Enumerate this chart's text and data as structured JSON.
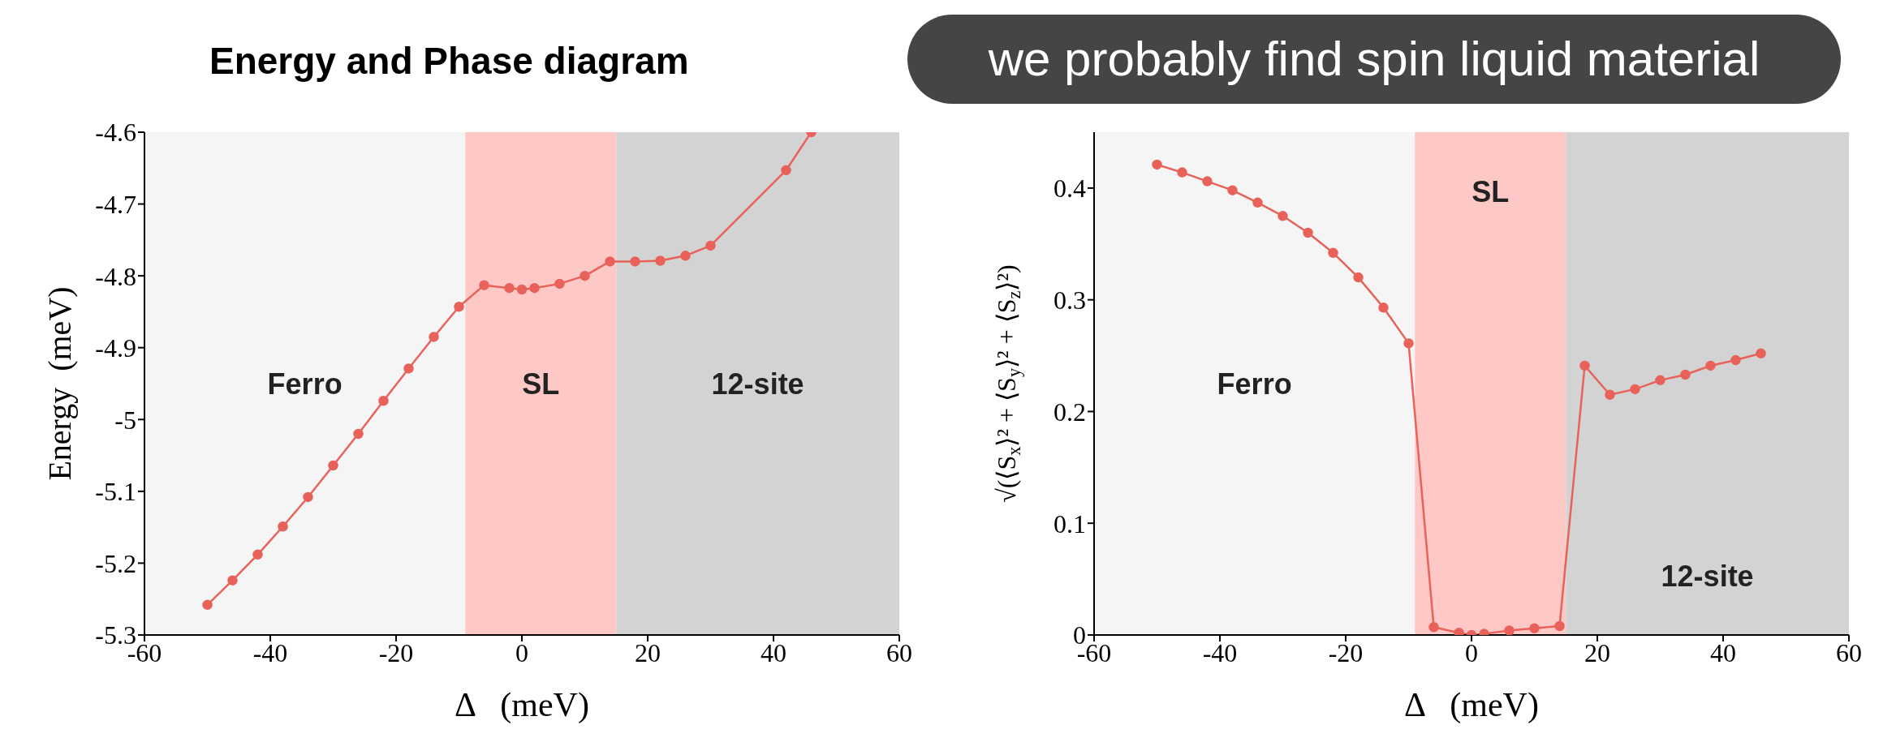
{
  "chart_data": [
    {
      "type": "line",
      "title": "Energy and Phase diagram",
      "xlabel": "Δ   (meV)",
      "ylabel": "Energy  (meV)",
      "xlim": [
        -60,
        60
      ],
      "xticks": [
        -60,
        -40,
        -20,
        0,
        20,
        40,
        60
      ],
      "ylim": [
        -5.3,
        -4.6
      ],
      "yticks": [
        -5.3,
        -5.2,
        -5.1,
        -5,
        -4.9,
        -4.8,
        -4.7,
        -4.6
      ],
      "marker": "circle",
      "line_style": "solid",
      "bands": [
        {
          "axis": "x",
          "from": -60,
          "to": -9,
          "label": "Ferro",
          "color": "#f5f5f5"
        },
        {
          "axis": "x",
          "from": -9,
          "to": 15,
          "label": "SL",
          "color": "#fdc8c6"
        },
        {
          "axis": "x",
          "from": 15,
          "to": 60,
          "label": "12-site",
          "color": "#d3d3d3"
        }
      ],
      "series": [
        {
          "color": "#e8625a",
          "x": [
            -50,
            -46,
            -42,
            -38,
            -34,
            -30,
            -26,
            -22,
            -18,
            -14,
            -10,
            -6,
            -2,
            0,
            2,
            6,
            10,
            14,
            18,
            22,
            26,
            30,
            42,
            46
          ],
          "values": [
            -5.258,
            -5.224,
            -5.188,
            -5.149,
            -5.108,
            -5.064,
            -5.02,
            -4.974,
            -4.929,
            -4.885,
            -4.843,
            -4.813,
            -4.817,
            -4.819,
            -4.817,
            -4.811,
            -4.8,
            -4.78,
            -4.78,
            -4.779,
            -4.772,
            -4.758,
            -4.653,
            -4.6
          ]
        }
      ]
    },
    {
      "type": "line",
      "xlabel": "Δ   (meV)",
      "ylabel": "√(⟨S$_{x}$⟩² + ⟨S$_{y}$⟩² + ⟨S$_{z}$⟩²)",
      "xlim": [
        -60,
        60
      ],
      "xticks": [
        -60,
        -40,
        -20,
        0,
        20,
        40,
        60
      ],
      "ylim": [
        0,
        0.45
      ],
      "yticks": [
        0,
        0.1,
        0.2,
        0.3,
        0.4
      ],
      "marker": "circle",
      "line_style": "solid",
      "annotations": [
        "we probably find spin liquid material"
      ],
      "bands": [
        {
          "axis": "x",
          "from": -60,
          "to": -9,
          "label": "Ferro",
          "color": "#f5f5f5"
        },
        {
          "axis": "x",
          "from": -9,
          "to": 15,
          "label": "SL",
          "color": "#fdc8c6"
        },
        {
          "axis": "x",
          "from": 15,
          "to": 60,
          "label": "12-site",
          "color": "#d3d3d3"
        }
      ],
      "series": [
        {
          "color": "#e8625a",
          "x": [
            -50,
            -46,
            -42,
            -38,
            -34,
            -30,
            -26,
            -22,
            -18,
            -14,
            -10,
            -6,
            -2,
            0,
            2,
            6,
            10,
            14,
            18,
            22,
            26,
            30,
            34,
            38,
            42,
            46
          ],
          "values": [
            0.421,
            0.414,
            0.406,
            0.398,
            0.387,
            0.375,
            0.36,
            0.342,
            0.32,
            0.293,
            0.261,
            0.007,
            0.002,
            0,
            0.001,
            0.004,
            0.006,
            0.008,
            0.241,
            0.215,
            0.22,
            0.228,
            0.233,
            0.241,
            0.246,
            0.252
          ]
        }
      ]
    }
  ]
}
